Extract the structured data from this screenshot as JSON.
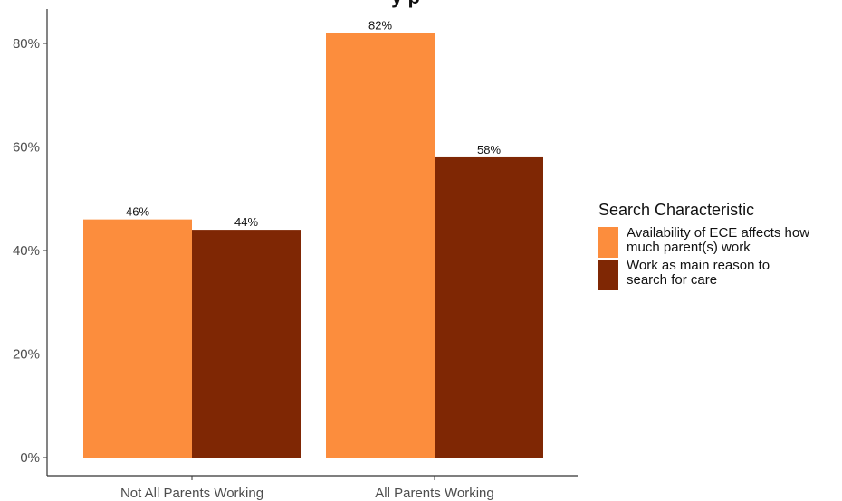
{
  "chart_data": {
    "type": "bar",
    "title_fragment": "y p",
    "categories": [
      "Not All Parents Working",
      "All Parents Working"
    ],
    "series": [
      {
        "name": "Availability of ECE affects how\n much parent(s) work",
        "color": "#fc8d3d",
        "values": [
          46,
          82
        ],
        "labels": [
          "46%",
          "82%"
        ]
      },
      {
        "name": "Work as main reason to\n search for care",
        "color": "#7f2704",
        "values": [
          44,
          58
        ],
        "labels": [
          "44%",
          "58%"
        ]
      }
    ],
    "yticks": [
      0,
      20,
      40,
      60,
      80
    ],
    "ytick_labels": [
      "0%",
      "20%",
      "40%",
      "60%",
      "80%"
    ],
    "ylim": [
      0,
      86
    ],
    "grid": false,
    "legend_title": "Search Characteristic",
    "legend_position": "right"
  }
}
